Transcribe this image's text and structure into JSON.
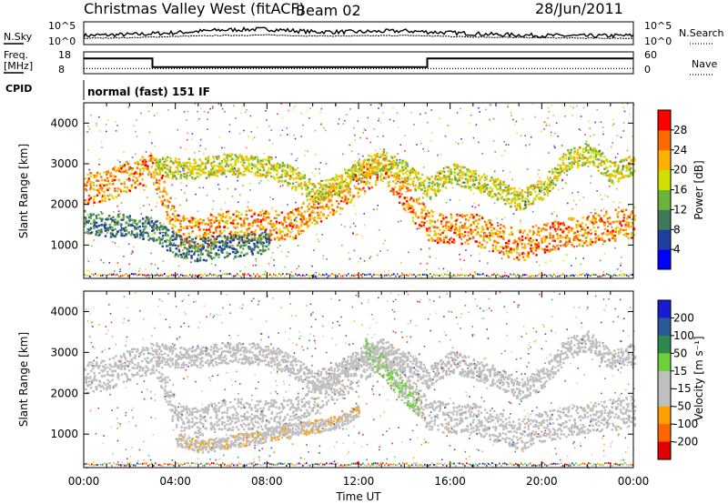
{
  "header": {
    "title": "Christmas Valley West (fitACF)",
    "beam": "Beam 02",
    "date": "28/Jun/2011"
  },
  "top_panels": {
    "nsky_label": "N.Sky",
    "nsearch_label": "N.Search",
    "nsky_ticks": [
      "10^5",
      "10^0"
    ],
    "nsearch_ticks": [
      "10^5",
      "10^0"
    ],
    "freq_label_line1": "Freq.",
    "freq_label_line2": "[MHz]",
    "freq_ticks": [
      "18",
      "8"
    ],
    "nave_label": "Nave",
    "nave_ticks": [
      "60",
      "0"
    ],
    "cpid_label": "CPID",
    "cpid_text": "normal (fast) 151 IF"
  },
  "colors": {
    "power_scale": [
      "#0000ff",
      "#1e3fa0",
      "#3c7a5a",
      "#6db23c",
      "#cfe000",
      "#ffb000",
      "#ff6a00",
      "#ff0000"
    ],
    "velocity_scale": [
      "#1a1ad0",
      "#2a5a96",
      "#2e8a4c",
      "#6fcf3a",
      "#bfbfbf",
      "#bfbfbf",
      "#ff9f00",
      "#ff6600",
      "#e00000"
    ],
    "ground_scatter": "#bdbdbd"
  },
  "chart_data": [
    {
      "type": "line",
      "panel": "noise",
      "series": [
        {
          "name": "N.Sky",
          "x": [
            0,
            2,
            4,
            6,
            8,
            10,
            12,
            14,
            16,
            18,
            20,
            22,
            24
          ],
          "values": [
            2.0,
            2.2,
            2.6,
            3.2,
            3.4,
            2.8,
            2.8,
            3.0,
            2.6,
            2.2,
            2.0,
            1.9,
            2.0
          ]
        },
        {
          "name": "N.Search",
          "x": [
            0,
            2,
            4,
            6,
            8,
            10,
            12,
            14,
            16,
            18,
            20,
            22,
            24
          ],
          "values": [
            1.4,
            1.5,
            1.8,
            2.0,
            2.1,
            1.9,
            1.9,
            2.0,
            1.8,
            1.6,
            1.5,
            1.4,
            1.4
          ]
        }
      ],
      "xlim": [
        0,
        24
      ]
    },
    {
      "type": "line",
      "panel": "frequency",
      "series": [
        {
          "name": "Freq.",
          "x": [
            0,
            3.0,
            3.0,
            15.0,
            15.0,
            24
          ],
          "values": [
            15,
            15,
            11,
            11,
            15,
            15
          ]
        },
        {
          "name": "Nave",
          "x": [
            0,
            24
          ],
          "values": [
            14,
            14
          ]
        }
      ],
      "ylim_freq": [
        8,
        18
      ],
      "ylim_nave": [
        0,
        60
      ]
    },
    {
      "type": "heatmap",
      "panel": "power",
      "ylabel": "Slant Range [km]",
      "colorbar_label": "Power [dB]",
      "colorbar_ticks": [
        4,
        8,
        12,
        16,
        20,
        24,
        28
      ],
      "clim": [
        0,
        32
      ],
      "xlim": [
        0,
        24
      ],
      "ylim": [
        180,
        4500
      ],
      "yticks": [
        1000,
        2000,
        3000,
        4000
      ],
      "bands": [
        {
          "x": [
            0,
            1,
            2,
            3,
            4,
            5,
            6,
            7,
            8,
            9,
            10,
            11,
            12,
            13,
            14,
            15,
            16,
            17,
            18,
            19,
            20,
            21,
            22,
            23,
            24
          ],
          "center": [
            2400,
            2500,
            2750,
            2900,
            1400,
            1300,
            1500,
            1500,
            1500,
            1500,
            1900,
            2200,
            2600,
            3000,
            2200,
            1500,
            1400,
            1400,
            1200,
            1000,
            1200,
            1300,
            1400,
            1500,
            1600
          ],
          "width": 380,
          "level": 24
        },
        {
          "x": [
            3,
            4,
            5,
            6,
            7,
            8,
            9,
            10,
            11,
            12,
            13,
            14,
            15,
            16,
            17,
            18,
            19,
            20,
            21,
            22,
            23,
            24
          ],
          "center": [
            3000,
            2900,
            2900,
            3000,
            3000,
            2950,
            2700,
            2300,
            2500,
            2900,
            3100,
            2800,
            2400,
            2800,
            2600,
            2400,
            2100,
            2400,
            3100,
            3300,
            2800,
            3000
          ],
          "width": 260,
          "level": 18
        },
        {
          "x": [
            0,
            1,
            2,
            3,
            4,
            5,
            6,
            7,
            8
          ],
          "center": [
            1600,
            1500,
            1500,
            1400,
            1000,
            900,
            1000,
            1000,
            1100
          ],
          "width": 280,
          "level": 10
        }
      ]
    },
    {
      "type": "heatmap",
      "panel": "velocity",
      "ylabel": "Slant Range [km]",
      "xlabel": "Time UT",
      "colorbar_label": "Velocity [m s⁻¹]",
      "colorbar_ticks": [
        200,
        100,
        50,
        15,
        -15,
        -50,
        -100,
        -200
      ],
      "xticks": [
        "00:00",
        "04:00",
        "08:00",
        "12:00",
        "16:00",
        "20:00",
        "00:00"
      ],
      "clim": [
        -250,
        250
      ],
      "xlim": [
        0,
        24
      ],
      "ylim": [
        180,
        4500
      ],
      "yticks": [
        1000,
        2000,
        3000,
        4000
      ],
      "bands": [
        {
          "x": [
            0,
            1,
            2,
            3,
            4,
            5,
            6,
            7,
            8,
            9,
            10,
            11,
            12,
            13,
            14,
            15,
            16,
            17,
            18,
            19,
            20,
            21,
            22,
            23,
            24
          ],
          "center": [
            2400,
            2500,
            2750,
            2900,
            1400,
            1300,
            1500,
            1500,
            1500,
            1500,
            1900,
            2200,
            2600,
            3000,
            2200,
            1500,
            1400,
            1400,
            1200,
            1000,
            1200,
            1300,
            1400,
            1500,
            1600
          ],
          "width": 380,
          "level": 0
        },
        {
          "x": [
            3,
            4,
            5,
            6,
            7,
            8,
            9,
            10,
            11,
            12,
            13,
            14,
            15,
            16,
            17,
            18,
            19,
            20,
            21,
            22,
            23,
            24
          ],
          "center": [
            3000,
            2900,
            2900,
            3000,
            3000,
            2950,
            2700,
            2300,
            2500,
            2900,
            3100,
            2800,
            2400,
            2800,
            2600,
            2400,
            2100,
            2400,
            3100,
            3300,
            2800,
            3000
          ],
          "width": 260,
          "level": 0
        },
        {
          "x": [
            12.2,
            12.8,
            13.4,
            14.0,
            14.6
          ],
          "center": [
            3200,
            2800,
            2400,
            2000,
            1700
          ],
          "width": 260,
          "level": 30
        },
        {
          "x": [
            4,
            5,
            6,
            7,
            8,
            9,
            10,
            11,
            12
          ],
          "center": [
            900,
            700,
            800,
            900,
            1000,
            1100,
            1200,
            1300,
            1600
          ],
          "width": 160,
          "level": -70
        }
      ]
    }
  ]
}
